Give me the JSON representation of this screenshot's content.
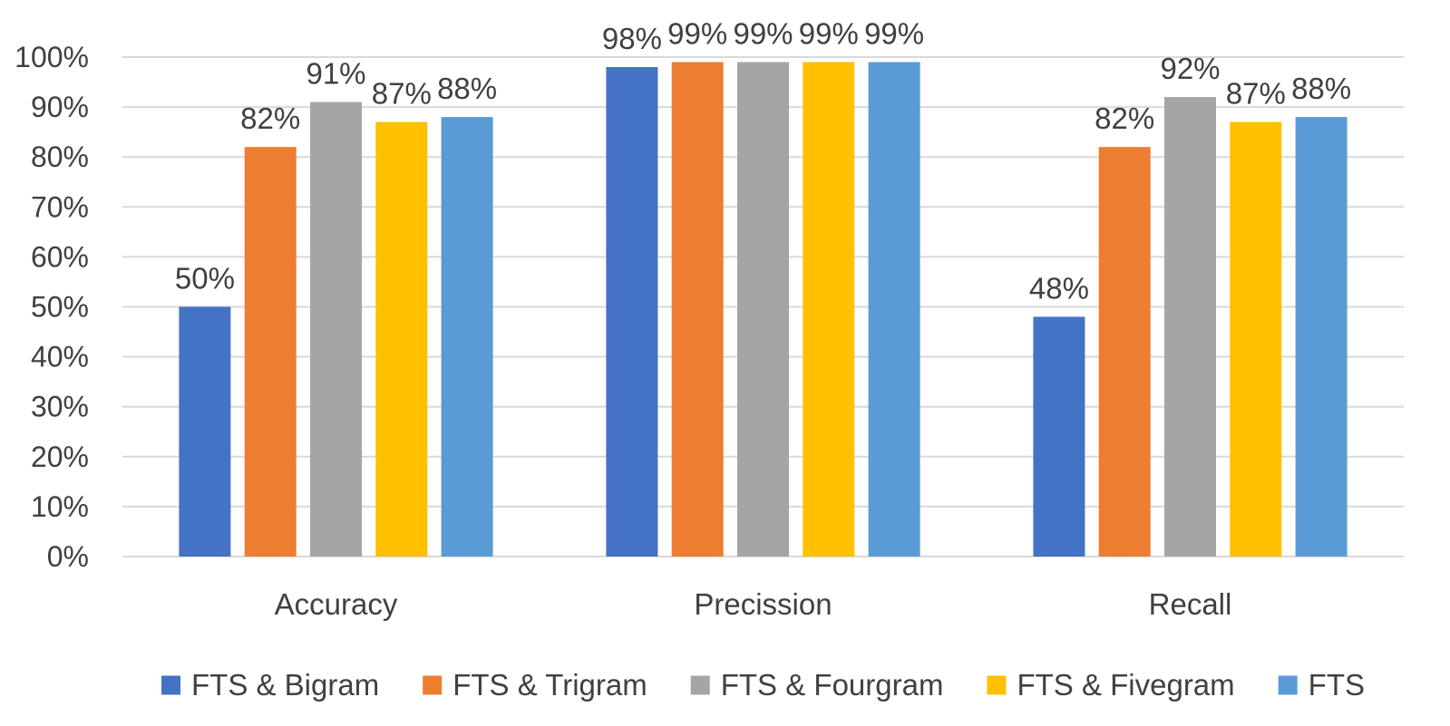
{
  "chart_data": {
    "type": "bar",
    "title": "",
    "xlabel": "",
    "ylabel": "",
    "categories": [
      "Accuracy",
      "Precission",
      "Recall"
    ],
    "ylim": [
      0,
      1
    ],
    "yticks": [
      0,
      0.1,
      0.2,
      0.3,
      0.4,
      0.5,
      0.6,
      0.7,
      0.8,
      0.9,
      1.0
    ],
    "ytick_labels": [
      "0%",
      "10%",
      "20%",
      "30%",
      "40%",
      "50%",
      "60%",
      "70%",
      "80%",
      "90%",
      "100%"
    ],
    "grid": true,
    "legend_position": "bottom",
    "series": [
      {
        "name": "FTS & Bigram",
        "color": "#4472c4",
        "values": [
          0.5,
          0.98,
          0.48
        ],
        "data_labels": [
          "50%",
          "98%",
          "48%"
        ]
      },
      {
        "name": "FTS & Trigram",
        "color": "#ed7d31",
        "values": [
          0.82,
          0.99,
          0.82
        ],
        "data_labels": [
          "82%",
          "99%",
          "82%"
        ]
      },
      {
        "name": "FTS & Fourgram",
        "color": "#a5a5a5",
        "values": [
          0.91,
          0.99,
          0.92
        ],
        "data_labels": [
          "91%",
          "99%",
          "92%"
        ]
      },
      {
        "name": "FTS & Fivegram",
        "color": "#ffc000",
        "values": [
          0.87,
          0.99,
          0.87
        ],
        "data_labels": [
          "87%",
          "99%",
          "87%"
        ]
      },
      {
        "name": "FTS",
        "color": "#5b9bd5",
        "values": [
          0.88,
          0.99,
          0.88
        ],
        "data_labels": [
          "88%",
          "99%",
          "88%"
        ]
      }
    ]
  }
}
